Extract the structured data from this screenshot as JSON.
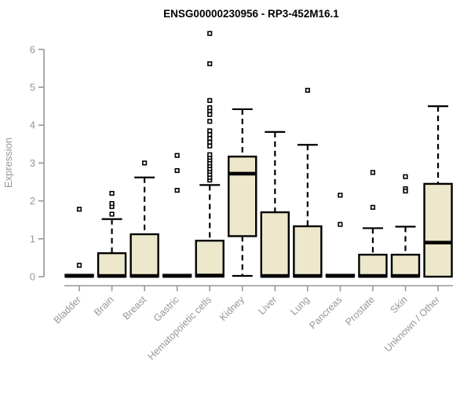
{
  "chart_data": {
    "type": "boxplot",
    "title": "ENSG00000230956 - RP3-452M16.1",
    "ylabel": "Expression",
    "xlabel": "",
    "ylim": [
      0,
      6.6
    ],
    "yticks": [
      0,
      1,
      2,
      3,
      4,
      5,
      6
    ],
    "grid": false,
    "legend": "none",
    "colors": {
      "box_fill": "#EDE7CB",
      "box_border": "#000000",
      "median": "#000000",
      "whisker": "#000000",
      "outlier": "#000000",
      "axis": "#969696",
      "title": "#000000",
      "background": "#ffffff"
    },
    "categories": [
      "Bladder",
      "Brain",
      "Breast",
      "Gastric",
      "Hematopoietic cells",
      "Kidney",
      "Liver",
      "Lung",
      "Pancreas",
      "Prostate",
      "Skin",
      "Unknown / Other"
    ],
    "series": [
      {
        "label": "Bladder",
        "whislo": 0,
        "q1": 0,
        "med": 0.02,
        "q3": 0.05,
        "whishi": 0.07,
        "outliers": [
          1.78,
          0.3
        ]
      },
      {
        "label": "Brain",
        "whislo": 0,
        "q1": 0,
        "med": 0.02,
        "q3": 0.62,
        "whishi": 1.52,
        "outliers": [
          1.65,
          1.85,
          1.93,
          2.2
        ]
      },
      {
        "label": "Breast",
        "whislo": 0,
        "q1": 0,
        "med": 0.02,
        "q3": 1.12,
        "whishi": 2.62,
        "outliers": [
          3.0
        ]
      },
      {
        "label": "Gastric",
        "whislo": 0,
        "q1": 0,
        "med": 0.02,
        "q3": 0.05,
        "whishi": 0.07,
        "outliers": [
          2.28,
          2.8,
          3.2
        ]
      },
      {
        "label": "Hematopoietic cells",
        "whislo": 0,
        "q1": 0,
        "med": 0.03,
        "q3": 0.95,
        "whishi": 2.42,
        "outliers": [
          2.55,
          2.62,
          2.7,
          2.78,
          2.85,
          2.93,
          3.0,
          3.08,
          3.15,
          3.22,
          3.45,
          3.55,
          3.65,
          3.75,
          3.85,
          4.1,
          4.28,
          4.38,
          4.46,
          4.65,
          5.62,
          6.42
        ]
      },
      {
        "label": "Kidney",
        "whislo": 0.02,
        "q1": 1.07,
        "med": 2.72,
        "q3": 3.17,
        "whishi": 4.42,
        "outliers": []
      },
      {
        "label": "Liver",
        "whislo": 0,
        "q1": 0,
        "med": 0.02,
        "q3": 1.7,
        "whishi": 3.82,
        "outliers": []
      },
      {
        "label": "Lung",
        "whislo": 0,
        "q1": 0,
        "med": 0.02,
        "q3": 1.33,
        "whishi": 3.48,
        "outliers": [
          4.92
        ]
      },
      {
        "label": "Pancreas",
        "whislo": 0,
        "q1": 0,
        "med": 0.02,
        "q3": 0.05,
        "whishi": 0.07,
        "outliers": [
          2.15,
          1.38
        ]
      },
      {
        "label": "Prostate",
        "whislo": 0,
        "q1": 0,
        "med": 0.02,
        "q3": 0.58,
        "whishi": 1.28,
        "outliers": [
          2.75,
          1.83
        ]
      },
      {
        "label": "Skin",
        "whislo": 0,
        "q1": 0,
        "med": 0.02,
        "q3": 0.58,
        "whishi": 1.32,
        "outliers": [
          2.64,
          2.32,
          2.26
        ]
      },
      {
        "label": "Unknown / Other",
        "whislo": 0,
        "q1": 0,
        "med": 0.9,
        "q3": 2.45,
        "whishi": 4.5,
        "outliers": []
      }
    ]
  }
}
